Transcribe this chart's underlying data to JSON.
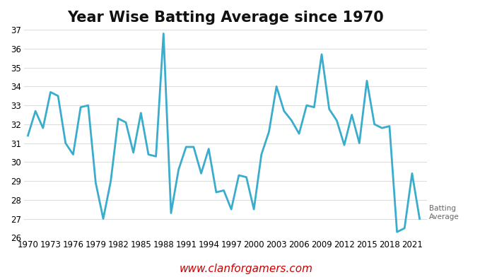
{
  "title": "Year Wise Batting Average since 1970",
  "line_color": "#3aaccc",
  "line_width": 2.0,
  "background_color": "#ffffff",
  "grid_color": "#dddddd",
  "ylabel_text": "Batting\nAverage",
  "watermark": "www.clanforgamers.com",
  "watermark_color": "#cc0000",
  "years": [
    1970,
    1971,
    1972,
    1973,
    1974,
    1975,
    1976,
    1977,
    1978,
    1979,
    1980,
    1981,
    1982,
    1983,
    1984,
    1985,
    1986,
    1987,
    1988,
    1989,
    1990,
    1991,
    1992,
    1993,
    1994,
    1995,
    1996,
    1997,
    1998,
    1999,
    2000,
    2001,
    2002,
    2003,
    2004,
    2005,
    2006,
    2007,
    2008,
    2009,
    2010,
    2011,
    2012,
    2013,
    2014,
    2015,
    2016,
    2017,
    2018,
    2019,
    2020,
    2021,
    2022
  ],
  "values": [
    31.4,
    32.7,
    31.8,
    33.7,
    33.5,
    31.0,
    30.4,
    32.9,
    33.0,
    28.9,
    27.0,
    29.0,
    32.3,
    32.1,
    30.5,
    32.6,
    30.4,
    30.3,
    36.8,
    27.3,
    29.6,
    30.8,
    30.8,
    29.4,
    30.7,
    28.4,
    28.5,
    27.5,
    29.3,
    29.2,
    27.5,
    30.4,
    31.6,
    34.0,
    32.7,
    32.2,
    31.5,
    33.0,
    32.9,
    35.7,
    32.8,
    32.2,
    30.9,
    32.5,
    31.0,
    34.3,
    32.0,
    31.8,
    31.9,
    26.3,
    26.5,
    29.4,
    27.0
  ],
  "ylim": [
    26,
    37
  ],
  "yticks": [
    26,
    27,
    28,
    29,
    30,
    31,
    32,
    33,
    34,
    35,
    36,
    37
  ],
  "xticks": [
    1970,
    1973,
    1976,
    1979,
    1982,
    1985,
    1988,
    1991,
    1994,
    1997,
    2000,
    2003,
    2006,
    2009,
    2012,
    2015,
    2018,
    2021
  ],
  "title_fontsize": 15,
  "tick_fontsize": 8.5,
  "watermark_fontsize": 11
}
